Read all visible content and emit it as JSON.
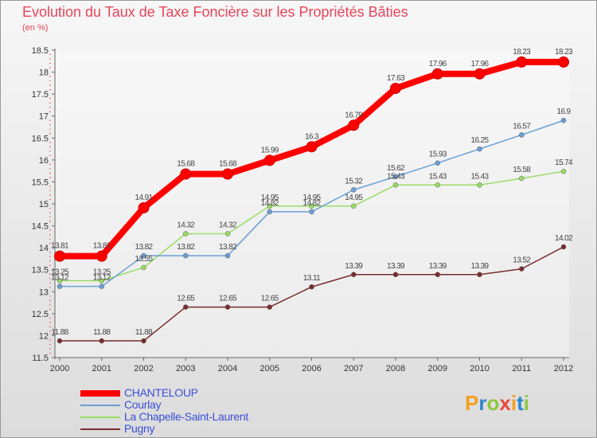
{
  "title": "Evolution du Taux de Taxe Foncière sur les Propriétés Bâties",
  "unit": "(en %)",
  "logo": {
    "text": "Proxiti",
    "colors": [
      "#f4a021",
      "#2f86c8",
      "#8cc63f",
      "#e84a3c",
      "#f4a021",
      "#2f86c8",
      "#8cc63f"
    ]
  },
  "chart_data": {
    "type": "line",
    "title": "Evolution du Taux de Taxe Foncière sur les Propriétés Bâties",
    "ylabel": "(en %)",
    "xlabel": "",
    "ylim": [
      11.5,
      18.5
    ],
    "yticks": [
      "11.5",
      "12",
      "12.5",
      "13",
      "13.5",
      "14",
      "14.5",
      "15",
      "15.5",
      "16",
      "16.5",
      "17",
      "17.5",
      "18",
      "18.5"
    ],
    "categories": [
      "2000",
      "2001",
      "2002",
      "2003",
      "2004",
      "2005",
      "2006",
      "2007",
      "2008",
      "2009",
      "2010",
      "2011",
      "2012"
    ],
    "grid": false,
    "series": [
      {
        "name": "CHANTELOUP",
        "color": "#ff0000",
        "values": [
          13.81,
          13.81,
          14.91,
          15.68,
          15.68,
          15.99,
          16.3,
          16.79,
          17.63,
          17.96,
          17.96,
          18.23,
          18.23
        ],
        "labels": [
          "13.81",
          "13.81",
          "14.91",
          "15.68",
          "15.68",
          "15.99",
          "16.3",
          "16.79",
          "17.63",
          "17.96",
          "17.96",
          "18.23",
          "18.23"
        ]
      },
      {
        "name": "Courlay",
        "color": "#6a9fd4",
        "values": [
          13.12,
          13.12,
          13.82,
          13.82,
          13.82,
          14.82,
          14.82,
          15.32,
          15.62,
          15.93,
          16.25,
          16.57,
          16.9
        ],
        "labels": [
          "13.12",
          "13.12",
          "13.82",
          "13.82",
          "13.82",
          "14.82",
          "14.82",
          "15.32",
          "15.62",
          "15.93",
          "16.25",
          "16.57",
          "16.9"
        ]
      },
      {
        "name": "La Chapelle-Saint-Laurent",
        "color": "#99dd66",
        "values": [
          13.25,
          13.25,
          13.55,
          14.32,
          14.32,
          14.95,
          14.95,
          14.95,
          15.43,
          15.43,
          15.43,
          15.58,
          15.74
        ],
        "labels": [
          "13.25",
          "13.25",
          "13.55",
          "14.32",
          "14.32",
          "14.95",
          "14.95",
          "14.95",
          "15.43",
          "15.43",
          "15.43",
          "15.58",
          "15.74"
        ]
      },
      {
        "name": "Pugny",
        "color": "#7a2c2c",
        "values": [
          11.88,
          11.88,
          11.88,
          12.65,
          12.65,
          12.65,
          13.11,
          13.39,
          13.39,
          13.39,
          13.39,
          13.52,
          14.02
        ],
        "labels": [
          "11.88",
          "11.88",
          "11.88",
          "12.65",
          "12.65",
          "12.65",
          "13.11",
          "13.39",
          "13.39",
          "13.39",
          "13.39",
          "13.52",
          "14.02"
        ]
      }
    ]
  }
}
